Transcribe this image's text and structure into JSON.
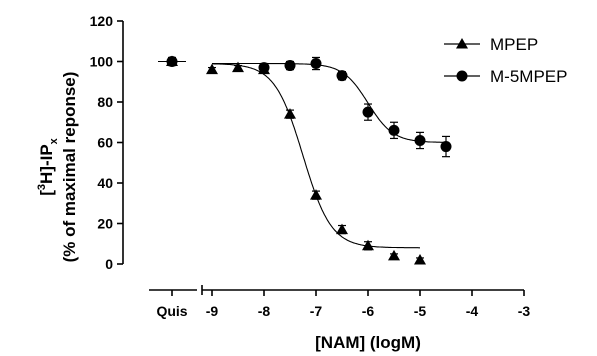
{
  "chart_data": {
    "type": "scatter",
    "xlabel": "[NAM] (logM)",
    "ylabel_line1_parts": [
      "[",
      "3",
      "H]-IP",
      "x"
    ],
    "ylabel_line2": "(% of maximal reponse)",
    "xlim": [
      -9,
      -3
    ],
    "ylim": [
      0,
      120
    ],
    "x_ticks": [
      -9,
      -8,
      -7,
      -6,
      -5,
      -4,
      -3
    ],
    "x_tick_labels": [
      "-9",
      "-8",
      "-7",
      "-6",
      "-5",
      "-4",
      "-3"
    ],
    "y_ticks": [
      0,
      20,
      40,
      60,
      80,
      100,
      120
    ],
    "y_tick_labels": [
      "0",
      "20",
      "40",
      "60",
      "80",
      "100",
      "120"
    ],
    "baseline_label": "Quis",
    "legend_position": "top-right",
    "grid": false,
    "series": [
      {
        "name": "MPEP",
        "marker": "triangle",
        "baseline": {
          "y": 100,
          "err": 1
        },
        "points": [
          {
            "x": -9.0,
            "y": 96,
            "err": 1
          },
          {
            "x": -8.5,
            "y": 97,
            "err": 1
          },
          {
            "x": -8.0,
            "y": 96,
            "err": 1
          },
          {
            "x": -7.5,
            "y": 74,
            "err": 2
          },
          {
            "x": -7.0,
            "y": 34,
            "err": 2
          },
          {
            "x": -6.5,
            "y": 17,
            "err": 2
          },
          {
            "x": -6.0,
            "y": 9,
            "err": 2
          },
          {
            "x": -5.5,
            "y": 4,
            "err": 1
          },
          {
            "x": -5.0,
            "y": 2,
            "err": 1
          }
        ],
        "fit": {
          "top": 99,
          "bottom": 8,
          "logIC50": -7.25,
          "hill": 1.6,
          "from": -9.0,
          "to": -5.0
        }
      },
      {
        "name": "M-5MPEP",
        "marker": "circle",
        "baseline": {
          "y": 100,
          "err": 2
        },
        "points": [
          {
            "x": -8.0,
            "y": 97,
            "err": 2
          },
          {
            "x": -7.5,
            "y": 98,
            "err": 2
          },
          {
            "x": -7.0,
            "y": 99,
            "err": 3
          },
          {
            "x": -6.5,
            "y": 93,
            "err": 2
          },
          {
            "x": -6.0,
            "y": 75,
            "err": 4
          },
          {
            "x": -5.5,
            "y": 66,
            "err": 4
          },
          {
            "x": -5.0,
            "y": 61,
            "err": 4
          },
          {
            "x": -4.5,
            "y": 58,
            "err": 5
          }
        ],
        "fit": {
          "top": 99,
          "bottom": 60,
          "logIC50": -6.0,
          "hill": 1.8,
          "from": -9.0,
          "to": -4.5
        }
      }
    ]
  }
}
